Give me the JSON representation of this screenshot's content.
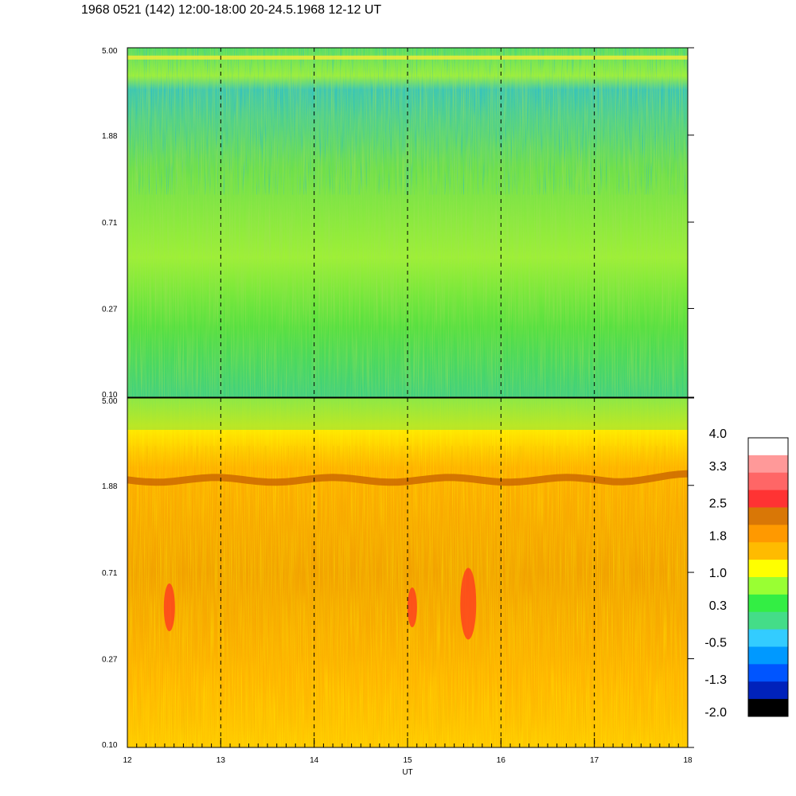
{
  "title": "1968 0521 (142) 12:00-18:00 20-24.5.1968  12-12 UT",
  "chart_data": {
    "type": "heatmap",
    "xlabel": "UT",
    "x_ticks": [
      "12",
      "13",
      "14",
      "15",
      "16",
      "17",
      "18"
    ],
    "x_range": [
      12,
      18
    ],
    "y_scale": "log",
    "y_range": [
      0.1,
      5.0
    ],
    "y_ticks": [
      "5.00",
      "1.88",
      "0.71",
      "0.27",
      "0.10"
    ],
    "dashed_gridlines_x": [
      13,
      14,
      15,
      16,
      17
    ],
    "panels": [
      {
        "name": "upper",
        "dominant_levels": "mostly 0.3 to 1.0 (green/yellow), with -0.5 to -1.3 (blue) patches near the top",
        "band_at": 4.5
      },
      {
        "name": "lower",
        "dominant_levels": "mostly 1.0 to 2.5 (yellow/orange), with 2.5 (red) spots near 0.5",
        "band_at": 2.0
      }
    ],
    "colorbar": {
      "labels": [
        "4.0",
        "3.3",
        "2.5",
        "1.8",
        "1.0",
        "0.3",
        "-0.5",
        "-1.3",
        "-2.0"
      ],
      "colors": [
        "#ffffff",
        "#ff9999",
        "#ff6666",
        "#ff3333",
        "#d97706",
        "#ff9900",
        "#ffbb00",
        "#ffff00",
        "#99ff33",
        "#33ee44",
        "#44dd88",
        "#33ccff",
        "#0099ff",
        "#0055ff",
        "#0022bb",
        "#000000"
      ]
    }
  }
}
